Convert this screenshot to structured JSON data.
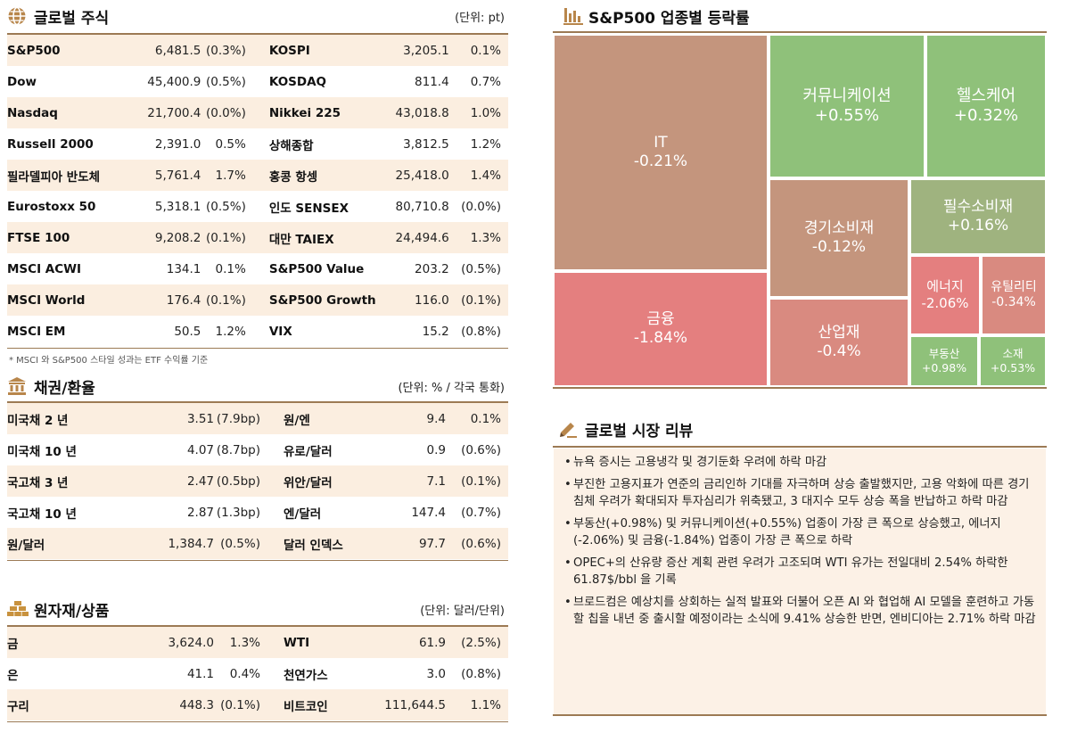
{
  "global_stocks": {
    "title": "글로벌 주식",
    "unit": "(단위: pt)",
    "icon": "globe-icon",
    "rows": [
      {
        "l_name": "S&P500",
        "l_val": "6,481.5",
        "l_chg": "(0.3%)",
        "r_name": "KOSPI",
        "r_val": "3,205.1",
        "r_chg": "0.1%"
      },
      {
        "l_name": "Dow",
        "l_val": "45,400.9",
        "l_chg": "(0.5%)",
        "r_name": "KOSDAQ",
        "r_val": "811.4",
        "r_chg": "0.7%"
      },
      {
        "l_name": "Nasdaq",
        "l_val": "21,700.4",
        "l_chg": "(0.0%)",
        "r_name": "Nikkei 225",
        "r_val": "43,018.8",
        "r_chg": "1.0%"
      },
      {
        "l_name": "Russell 2000",
        "l_val": "2,391.0",
        "l_chg": "0.5%",
        "r_name": "상해종합",
        "r_val": "3,812.5",
        "r_chg": "1.2%"
      },
      {
        "l_name": "필라델피아 반도체",
        "l_val": "5,761.4",
        "l_chg": "1.7%",
        "r_name": "홍콩 항셍",
        "r_val": "25,418.0",
        "r_chg": "1.4%"
      },
      {
        "l_name": "Eurostoxx 50",
        "l_val": "5,318.1",
        "l_chg": "(0.5%)",
        "r_name": "인도 SENSEX",
        "r_val": "80,710.8",
        "r_chg": "(0.0%)"
      },
      {
        "l_name": "FTSE 100",
        "l_val": "9,208.2",
        "l_chg": "(0.1%)",
        "r_name": "대만 TAIEX",
        "r_val": "24,494.6",
        "r_chg": "1.3%"
      },
      {
        "l_name": "MSCI ACWI",
        "l_val": "134.1",
        "l_chg": "0.1%",
        "r_name": "S&P500 Value",
        "r_val": "203.2",
        "r_chg": "(0.5%)"
      },
      {
        "l_name": "MSCI World",
        "l_val": "176.4",
        "l_chg": "(0.1%)",
        "r_name": "S&P500 Growth",
        "r_val": "116.0",
        "r_chg": "(0.1%)"
      },
      {
        "l_name": "MSCI EM",
        "l_val": "50.5",
        "l_chg": "1.2%",
        "r_name": "VIX",
        "r_val": "15.2",
        "r_chg": "(0.8%)"
      }
    ],
    "note": "* MSCI 와 S&P500 스타일 성과는 ETF 수익률 기준"
  },
  "bonds_fx": {
    "title": "채권/환율",
    "unit": "(단위: % / 각국 통화)",
    "icon": "bank-icon",
    "rows": [
      {
        "l_name": "미국채 2 년",
        "l_val": "3.51",
        "l_chg": "(7.9bp)",
        "r_name": "원/엔",
        "r_val": "9.4",
        "r_chg": "0.1%"
      },
      {
        "l_name": "미국채 10 년",
        "l_val": "4.07",
        "l_chg": "(8.7bp)",
        "r_name": "유로/달러",
        "r_val": "0.9",
        "r_chg": "(0.6%)"
      },
      {
        "l_name": "국고채 3 년",
        "l_val": "2.47",
        "l_chg": "(0.5bp)",
        "r_name": "위안/달러",
        "r_val": "7.1",
        "r_chg": "(0.1%)"
      },
      {
        "l_name": "국고채 10 년",
        "l_val": "2.87",
        "l_chg": "(1.3bp)",
        "r_name": "엔/달러",
        "r_val": "147.4",
        "r_chg": "(0.7%)"
      },
      {
        "l_name": "원/달러",
        "l_val": "1,384.7",
        "l_chg": "(0.5%)",
        "r_name": "달러 인덱스",
        "r_val": "97.7",
        "r_chg": "(0.6%)"
      }
    ]
  },
  "commodities": {
    "title": "원자재/상품",
    "unit": "(단위: 달러/단위)",
    "icon": "gold-bars-icon",
    "rows": [
      {
        "l_name": "금",
        "l_val": "3,624.0",
        "l_chg": "1.3%",
        "r_name": "WTI",
        "r_val": "61.9",
        "r_chg": "(2.5%)"
      },
      {
        "l_name": "은",
        "l_val": "41.1",
        "l_chg": "0.4%",
        "r_name": "천연가스",
        "r_val": "3.0",
        "r_chg": "(0.8%)"
      },
      {
        "l_name": "구리",
        "l_val": "448.3",
        "l_chg": "(0.1%)",
        "r_name": "비트코인",
        "r_val": "111,644.5",
        "r_chg": "1.1%"
      }
    ]
  },
  "sector_map": {
    "title": "S&P500 업종별 등락률",
    "icon": "bar-chart-icon",
    "colors": {
      "pos_strong": "#8fc17a",
      "pos_weak": "#9fb37f",
      "neg_mild": "#c4957d",
      "neg": "#d98a80",
      "neg_strong": "#e47f7f"
    }
  },
  "chart_data": {
    "type": "treemap",
    "title": "S&P500 업종별 등락률",
    "unit": "%",
    "sectors": [
      {
        "name": "IT",
        "label": "-0.21%",
        "value": -0.21
      },
      {
        "name": "금융",
        "label": "-1.84%",
        "value": -1.84
      },
      {
        "name": "커뮤니케이션",
        "label": "+0.55%",
        "value": 0.55
      },
      {
        "name": "헬스케어",
        "label": "+0.32%",
        "value": 0.32
      },
      {
        "name": "경기소비재",
        "label": "-0.12%",
        "value": -0.12
      },
      {
        "name": "필수소비재",
        "label": "+0.16%",
        "value": 0.16
      },
      {
        "name": "에너지",
        "label": "-2.06%",
        "value": -2.06
      },
      {
        "name": "유틸리티",
        "label": "-0.34%",
        "value": -0.34
      },
      {
        "name": "산업재",
        "label": "-0.4%",
        "value": -0.4
      },
      {
        "name": "부동산",
        "label": "+0.98%",
        "value": 0.98
      },
      {
        "name": "소재",
        "label": "+0.53%",
        "value": 0.53
      }
    ]
  },
  "review": {
    "title": "글로벌 시장 리뷰",
    "icon": "pencil-icon",
    "items": [
      "뉴욕 증시는 고용냉각 및 경기둔화 우려에 하락 마감",
      "부진한 고용지표가 연준의 금리인하 기대를 자극하며 상승 출발했지만, 고용 악화에 따른 경기 침체 우려가 확대되자 투자심리가 위축됐고, 3 대지수 모두 상승 폭을 반납하고 하락 마감",
      "부동산(+0.98%) 및 커뮤니케이션(+0.55%) 업종이 가장 큰 폭으로 상승했고, 에너지(-2.06%) 및 금융(-1.84%) 업종이 가장 큰 폭으로 하락",
      "OPEC+의 산유량 증산 계획 관련 우려가 고조되며 WTI 유가는 전일대비 2.54% 하락한 61.87$/bbl 을 기록",
      "브로드컴은 예상치를 상회하는 실적 발표와 더불어 오픈 AI 와 협업해 AI 모델을 훈련하고 가동할 칩을 내년 중 출시할 예정이라는 소식에 9.41% 상승한 반면, 엔비디아는 2.71% 하락 마감"
    ]
  }
}
